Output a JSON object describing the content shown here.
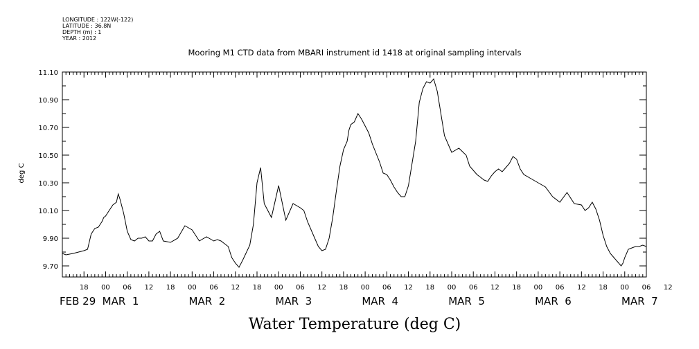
{
  "meta": {
    "longitude": "LONGITUDE : 122W(-122)",
    "latitude": "LATITUDE : 36.8N",
    "depth": "DEPTH (m) : 1",
    "year": "YEAR : 2012"
  },
  "chart_data": {
    "type": "line",
    "title": "Mooring M1 CTD data from MBARI instrument id 1418 at original sampling intervals",
    "xlabel": "Water Temperature (deg C)",
    "ylabel": "deg C",
    "ylim": [
      9.62,
      11.1
    ],
    "y_ticks": [
      "11.10",
      "10.90",
      "10.70",
      "10.50",
      "10.30",
      "10.10",
      "9.90",
      "9.70"
    ],
    "x_range_hours": [
      0,
      162
    ],
    "x_hour_ticks": [
      "18",
      "00",
      "06",
      "12",
      "18",
      "00",
      "06",
      "12",
      "18",
      "00",
      "06",
      "12",
      "18",
      "00",
      "06",
      "12",
      "18",
      "00",
      "06",
      "12",
      "18",
      "00",
      "06",
      "12",
      "18",
      "00",
      "06",
      "12"
    ],
    "x_date_labels": [
      "FEB 29",
      "MAR  1",
      "MAR  2",
      "MAR  3",
      "MAR  4",
      "MAR  5",
      "MAR  6",
      "MAR  7"
    ],
    "grid": false,
    "x": [
      0,
      1,
      3,
      6,
      7,
      8,
      9,
      10,
      11,
      11.5,
      12,
      13,
      14,
      15,
      15.5,
      16,
      17,
      18,
      19,
      20,
      21,
      22,
      23,
      24,
      25,
      26,
      27,
      28,
      30,
      32,
      34,
      36,
      38,
      40,
      42,
      43,
      44,
      45,
      46,
      47,
      48,
      49,
      50,
      52,
      53,
      54,
      55,
      56,
      58,
      60,
      62,
      64,
      66,
      67,
      68,
      69,
      70,
      71,
      72,
      73,
      74,
      75,
      76,
      77,
      78,
      79,
      79.5,
      80,
      81,
      82,
      83,
      84,
      85,
      86,
      88,
      89,
      90,
      91,
      92,
      93,
      94,
      95,
      96,
      97,
      98,
      99,
      100,
      101,
      102,
      103,
      104,
      106,
      108,
      110,
      112,
      113,
      114,
      115,
      116,
      117,
      118,
      119,
      120,
      120.5,
      121,
      122,
      123,
      124,
      125,
      126,
      127,
      128,
      130,
      132,
      134,
      136,
      138,
      140,
      142,
      144,
      145,
      146,
      147,
      148,
      149,
      150,
      151,
      152,
      153,
      154,
      155,
      155.5,
      156,
      157,
      158,
      159,
      160,
      161,
      162
    ],
    "values": [
      9.79,
      9.78,
      9.79,
      9.81,
      9.82,
      9.93,
      9.97,
      9.98,
      10.02,
      10.05,
      10.06,
      10.1,
      10.14,
      10.16,
      10.22,
      10.18,
      10.08,
      9.95,
      9.89,
      9.88,
      9.9,
      9.9,
      9.91,
      9.88,
      9.88,
      9.93,
      9.95,
      9.88,
      9.87,
      9.9,
      9.99,
      9.96,
      9.88,
      9.91,
      9.88,
      9.89,
      9.88,
      9.86,
      9.84,
      9.76,
      9.72,
      9.69,
      9.74,
      9.85,
      10.0,
      10.3,
      10.41,
      10.15,
      10.05,
      10.28,
      10.03,
      10.15,
      10.12,
      10.1,
      10.02,
      9.96,
      9.9,
      9.84,
      9.81,
      9.82,
      9.9,
      10.05,
      10.24,
      10.42,
      10.54,
      10.6,
      10.68,
      10.72,
      10.74,
      10.8,
      10.76,
      10.71,
      10.66,
      10.58,
      10.45,
      10.37,
      10.36,
      10.32,
      10.27,
      10.23,
      10.2,
      10.2,
      10.28,
      10.44,
      10.6,
      10.88,
      10.98,
      11.03,
      11.02,
      11.05,
      10.96,
      10.64,
      10.52,
      10.55,
      10.5,
      10.42,
      10.39,
      10.36,
      10.34,
      10.32,
      10.31,
      10.35,
      10.38,
      10.39,
      10.4,
      10.38,
      10.41,
      10.44,
      10.49,
      10.47,
      10.4,
      10.36,
      10.33,
      10.3,
      10.27,
      10.2,
      10.16,
      10.23,
      10.15,
      10.14,
      10.1,
      10.12,
      10.16,
      10.11,
      10.03,
      9.92,
      9.84,
      9.79,
      9.76,
      9.73,
      9.7,
      9.72,
      9.76,
      9.82,
      9.83,
      9.84,
      9.84,
      9.85,
      9.84
    ]
  }
}
